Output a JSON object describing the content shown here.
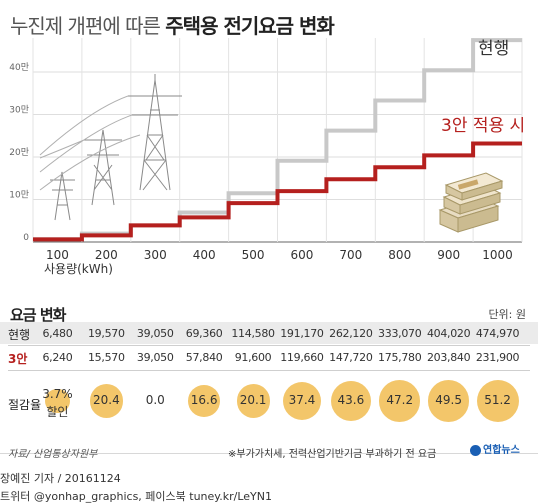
{
  "header": {
    "title_prefix": "누진제 개편에 따른 ",
    "title_bold": "주택용 전기요금 변화"
  },
  "chart_data": {
    "type": "line",
    "x": [
      100,
      200,
      300,
      400,
      500,
      600,
      700,
      800,
      900,
      1000
    ],
    "x_tick_labels": [
      "100",
      "200",
      "300",
      "400",
      "500",
      "600",
      "700",
      "800",
      "900",
      "1000"
    ],
    "xlabel": "사용량(kWh)",
    "y_tick_labels": [
      "0",
      "10만",
      "20만",
      "30만",
      "40만"
    ],
    "y_ticks": [
      0,
      100000,
      200000,
      300000,
      400000
    ],
    "ylim": [
      0,
      480000
    ],
    "grid": true,
    "step": true,
    "series": [
      {
        "name": "현행",
        "color": "#c8c8c8",
        "values": [
          6480,
          19570,
          39050,
          69360,
          114580,
          191170,
          262120,
          333070,
          404020,
          474970
        ]
      },
      {
        "name": "3안 적용 시",
        "color": "#b5201e",
        "values": [
          6240,
          15570,
          39050,
          57840,
          91600,
          119660,
          147720,
          175780,
          203840,
          231900
        ]
      }
    ]
  },
  "table": {
    "title": "요금 변화",
    "unit": "단위: 원",
    "rows": [
      {
        "label": "현행",
        "values": [
          "6,480",
          "19,570",
          "39,050",
          "69,360",
          "114,580",
          "191,170",
          "262,120",
          "333,070",
          "404,020",
          "474,970"
        ]
      },
      {
        "label": "3안",
        "values": [
          "6,240",
          "15,570",
          "39,050",
          "57,840",
          "91,600",
          "119,660",
          "147,720",
          "175,780",
          "203,840",
          "231,900"
        ]
      }
    ],
    "reduction_label": "절감율",
    "reduction_values": [
      3.7,
      20.4,
      0.0,
      16.6,
      20.1,
      37.4,
      43.6,
      47.2,
      49.5,
      51.2
    ],
    "reduction_texts": [
      "3.7%",
      "20.4",
      "0.0",
      "16.6",
      "20.1",
      "37.4",
      "43.6",
      "47.2",
      "49.5",
      "51.2"
    ],
    "discount_text": "할인"
  },
  "footer": {
    "source": "자료/ 산업통상자원부",
    "note": "※부가가치세, 전력산업기반기금 부과하기 전 요금",
    "logo": "연합뉴스",
    "credit_line1": "장예진 기자 / 20161124",
    "credit_line2": "트위터 @yonhap_graphics, 페이스북 tuney.kr/LeYN1"
  },
  "colors": {
    "current": "#c8c8c8",
    "plan3": "#b5201e",
    "circle": "#f3c66a",
    "row_shade": "#ebebeb"
  }
}
